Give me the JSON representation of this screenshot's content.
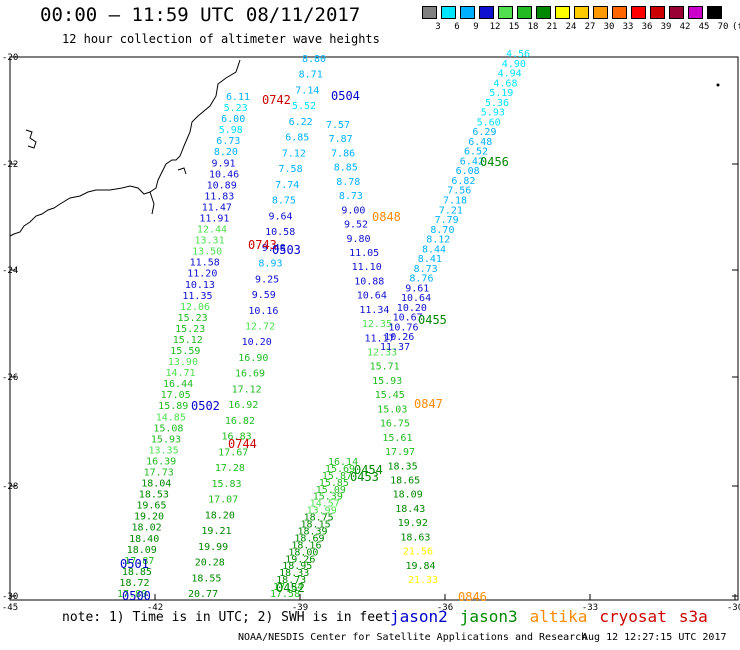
{
  "header": {
    "title": "00:00 — 11:59 UTC 08/11/2017",
    "subtitle": "12 hour collection of altimeter wave heights"
  },
  "colorbar": {
    "labels": [
      "3",
      "6",
      "9",
      "12",
      "15",
      "18",
      "21",
      "24",
      "27",
      "30",
      "33",
      "36",
      "39",
      "42",
      "45",
      "70",
      "(ft)"
    ],
    "colors": [
      "#808080",
      "#00e5ff",
      "#00b0ff",
      "#1010d0",
      "#50e050",
      "#22bb22",
      "#008800",
      "#ffff00",
      "#ffcc00",
      "#ff9900",
      "#ff6600",
      "#ff0000",
      "#cc0000",
      "#990033",
      "#cc00cc",
      "#000000"
    ]
  },
  "map": {
    "lat_labels": [
      "-20",
      "-22",
      "-24",
      "-26",
      "-28",
      "-30"
    ],
    "lon_labels": [
      "-45",
      "-42",
      "-39",
      "-36",
      "-33",
      "-30"
    ],
    "satellite_colors": {
      "jason2": "#0000cc",
      "jason3": "#008800",
      "altika": "#ff8c00",
      "cryosat": "#cc0000",
      "s3a": "#cc0000"
    },
    "time_labels": [
      {
        "text": "0742",
        "sat": "cryosat"
      },
      {
        "text": "0743",
        "sat": "cryosat"
      },
      {
        "text": "0744",
        "sat": "cryosat"
      },
      {
        "text": "0504",
        "sat": "jason2"
      },
      {
        "text": "0503",
        "sat": "jason2"
      },
      {
        "text": "0502",
        "sat": "jason2"
      },
      {
        "text": "0501",
        "sat": "jason2"
      },
      {
        "text": "0500",
        "sat": "jason2"
      },
      {
        "text": "0848",
        "sat": "altika"
      },
      {
        "text": "0847",
        "sat": "altika"
      },
      {
        "text": "0846",
        "sat": "altika"
      },
      {
        "text": "0456",
        "sat": "jason3"
      },
      {
        "text": "0455",
        "sat": "jason3"
      },
      {
        "text": "0454",
        "sat": "jason3"
      },
      {
        "text": "0453",
        "sat": "jason3"
      },
      {
        "text": "0452",
        "sat": "jason3"
      }
    ],
    "track_a": [
      "6.11",
      "5.23",
      "6.00",
      "5.98",
      "6.73",
      "8.20",
      "9.91",
      "10.46",
      "10.89",
      "11.83",
      "11.47",
      "11.91",
      "12.44",
      "13.31",
      "13.50",
      "11.58",
      "11.20",
      "10.13",
      "11.35",
      "12.06",
      "15.23",
      "15.23",
      "15.12",
      "15.59",
      "13.90",
      "14.71",
      "16.44",
      "17.05",
      "15.89",
      "14.85",
      "15.08",
      "15.93",
      "13.35",
      "16.39",
      "17.73",
      "18.04",
      "18.53",
      "19.65",
      "19.20",
      "18.02",
      "18.40",
      "18.09",
      "17.87",
      "18.85",
      "18.72",
      "17.80"
    ],
    "track_b": [
      "8.80",
      "8.71",
      "7.14",
      "5.52",
      "6.22",
      "6.85",
      "7.12",
      "7.58",
      "7.74",
      "8.75",
      "9.64",
      "10.58",
      "9.48",
      "8.93",
      "9.25",
      "9.59",
      "10.16",
      "12.72",
      "10.20",
      "16.90",
      "16.69",
      "17.12",
      "16.92",
      "16.82",
      "16.83",
      "17.67",
      "17.28",
      "15.83",
      "17.07",
      "18.20",
      "19.21",
      "19.99",
      "20.28",
      "18.55",
      "20.77"
    ],
    "track_c": [
      "7.57",
      "7.87",
      "7.86",
      "8.85",
      "8.78",
      "8.73",
      "9.00",
      "9.52",
      "9.80",
      "11.05",
      "11.10",
      "10.88",
      "10.64",
      "11.34",
      "12.35",
      "11.17",
      "12.33",
      "15.71",
      "15.93",
      "15.45",
      "15.03",
      "16.75",
      "15.61",
      "17.97",
      "18.35",
      "18.65",
      "18.09",
      "18.43",
      "19.92",
      "18.63",
      "21.56",
      "19.84",
      "21.33"
    ],
    "track_d": [
      "16.14",
      "15.69",
      "15.87",
      "15.85",
      "15.09",
      "15.39",
      "14.57",
      "13.99",
      "18.75",
      "18.15",
      "18.39",
      "18.69",
      "18.16",
      "18.00",
      "19.26",
      "18.95",
      "18.33",
      "18.73",
      "17.84",
      "17.58"
    ],
    "track_e": [
      "4.56",
      "4.90",
      "4.94",
      "4.68",
      "5.19",
      "5.36",
      "5.93",
      "5.60",
      "6.29",
      "6.48",
      "6.52",
      "6.42",
      "6.08",
      "6.82",
      "7.56",
      "7.18",
      "7.21",
      "7.79",
      "8.70",
      "8.12",
      "8.44",
      "8.41",
      "8.73",
      "8.76",
      "9.61",
      "10.64",
      "10.20",
      "10.67",
      "10.76",
      "10.26",
      "11.37"
    ]
  },
  "footer": {
    "note": "note: 1) Time is in UTC; 2) SWH is in feet",
    "legend": [
      "jason2",
      "jason3",
      "altika",
      "cryosat",
      "s3a"
    ],
    "credit": "NOAA/NESDIS Center for Satellite Applications and Research",
    "stamp": "Aug 12 12:27:15 UTC 2017"
  }
}
